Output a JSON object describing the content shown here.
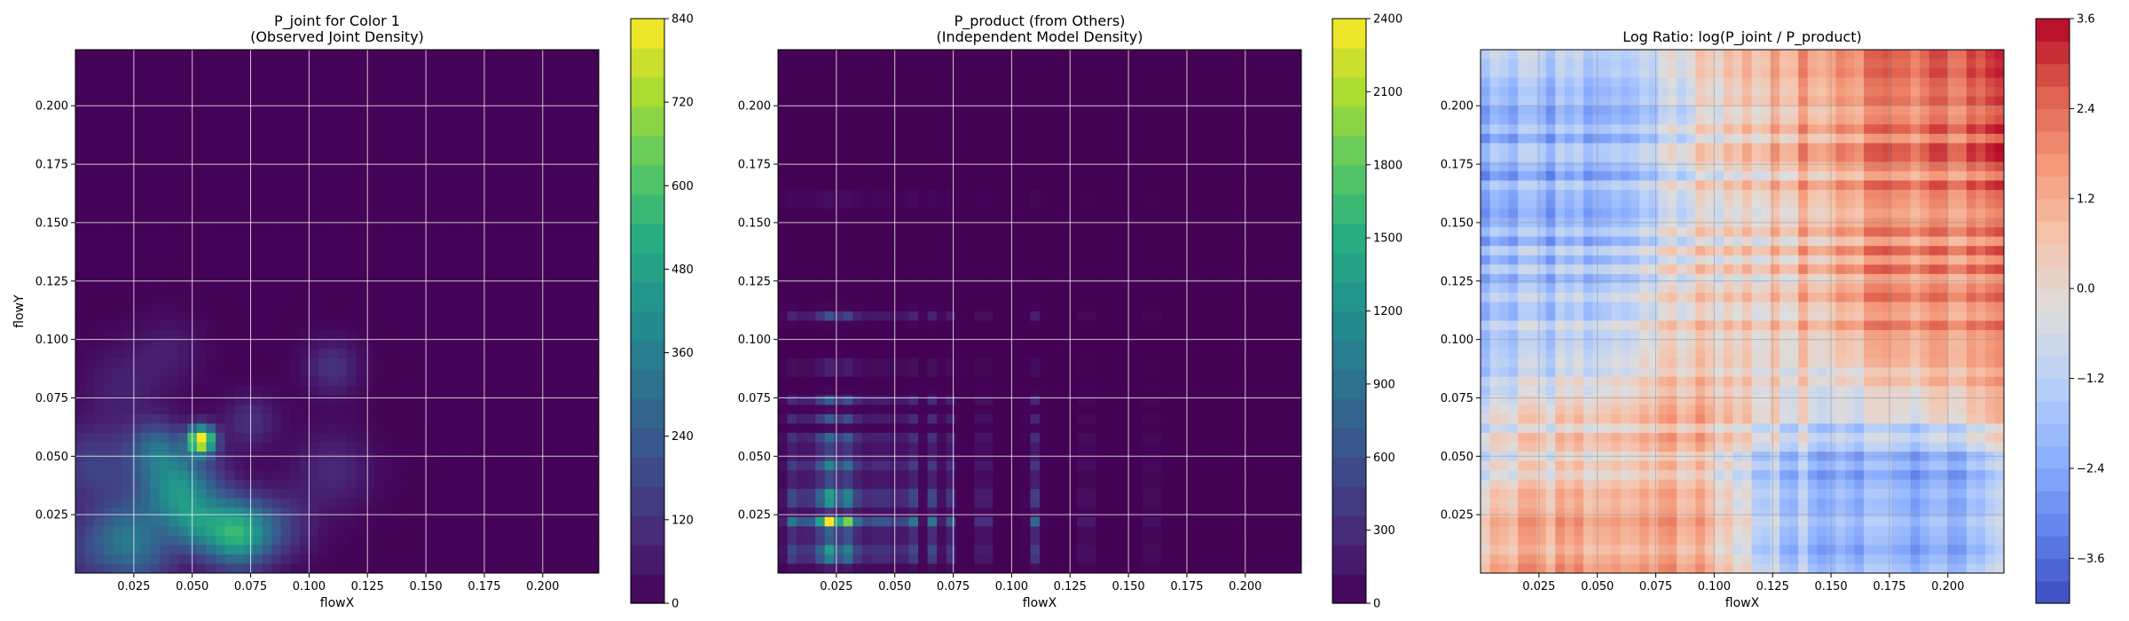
{
  "chart_data": [
    {
      "type": "heatmap",
      "title": "P_joint for Color 1\n(Observed Joint Density)",
      "xlabel": "flowX",
      "ylabel": "flowY",
      "xlim": [
        0.0,
        0.224
      ],
      "ylim": [
        0.0,
        0.224
      ],
      "xticks": [
        "0.025",
        "0.050",
        "0.075",
        "0.100",
        "0.125",
        "0.150",
        "0.175",
        "0.200"
      ],
      "yticks": [
        "0.025",
        "0.050",
        "0.075",
        "0.100",
        "0.125",
        "0.150",
        "0.175",
        "0.200"
      ],
      "grid": true,
      "colormap": "viridis",
      "colorbar": {
        "min": 0,
        "max": 840,
        "ticks": [
          "0",
          "120",
          "240",
          "360",
          "480",
          "600",
          "720",
          "840"
        ]
      },
      "hotspots": [
        {
          "x": 0.054,
          "y": 0.057,
          "value": 820
        },
        {
          "x": 0.069,
          "y": 0.017,
          "value": 520
        },
        {
          "x": 0.044,
          "y": 0.036,
          "value": 420
        },
        {
          "x": 0.034,
          "y": 0.054,
          "value": 220
        },
        {
          "x": 0.022,
          "y": 0.017,
          "value": 200
        },
        {
          "x": 0.008,
          "y": 0.046,
          "value": 160
        },
        {
          "x": 0.051,
          "y": 0.02,
          "value": 200
        },
        {
          "x": 0.088,
          "y": 0.02,
          "value": 130
        },
        {
          "x": 0.11,
          "y": 0.044,
          "value": 90
        },
        {
          "x": 0.11,
          "y": 0.088,
          "value": 120
        },
        {
          "x": 0.04,
          "y": 0.095,
          "value": 60
        },
        {
          "x": 0.02,
          "y": 0.08,
          "value": 70
        },
        {
          "x": 0.075,
          "y": 0.065,
          "value": 110
        },
        {
          "x": 0.03,
          "y": 0.005,
          "value": 150
        },
        {
          "x": 0.007,
          "y": 0.01,
          "value": 140
        }
      ]
    },
    {
      "type": "heatmap",
      "title": "P_product (from Others)\n(Independent Model Density)",
      "xlabel": "flowX",
      "ylabel": "",
      "xlim": [
        0.0,
        0.224
      ],
      "ylim": [
        0.0,
        0.224
      ],
      "xticks": [
        "0.025",
        "0.050",
        "0.075",
        "0.100",
        "0.125",
        "0.150",
        "0.175",
        "0.200"
      ],
      "yticks": [
        "0.025",
        "0.050",
        "0.075",
        "0.100",
        "0.125",
        "0.150",
        "0.175",
        "0.200"
      ],
      "grid": true,
      "colormap": "viridis",
      "colorbar": {
        "min": 0,
        "max": 2400,
        "ticks": [
          "0",
          "300",
          "600",
          "900",
          "1200",
          "1500",
          "1800",
          "2100",
          "2400"
        ]
      },
      "x_marginal_peaks": [
        {
          "x": 0.005,
          "w": 0.5
        },
        {
          "x": 0.012,
          "w": 0.6
        },
        {
          "x": 0.018,
          "w": 0.55
        },
        {
          "x": 0.022,
          "w": 1.0
        },
        {
          "x": 0.027,
          "w": 0.65
        },
        {
          "x": 0.031,
          "w": 0.85
        },
        {
          "x": 0.036,
          "w": 0.5
        },
        {
          "x": 0.044,
          "w": 0.6
        },
        {
          "x": 0.052,
          "w": 0.45
        },
        {
          "x": 0.058,
          "w": 0.4
        },
        {
          "x": 0.066,
          "w": 0.4
        },
        {
          "x": 0.073,
          "w": 0.35
        },
        {
          "x": 0.088,
          "w": 0.3
        },
        {
          "x": 0.11,
          "w": 0.35
        },
        {
          "x": 0.132,
          "w": 0.15
        },
        {
          "x": 0.16,
          "w": 0.1
        }
      ],
      "y_marginal_peaks": [
        {
          "y": 0.005,
          "w": 0.5
        },
        {
          "y": 0.01,
          "w": 0.55
        },
        {
          "y": 0.016,
          "w": 0.6
        },
        {
          "y": 0.022,
          "w": 1.0
        },
        {
          "y": 0.029,
          "w": 0.6
        },
        {
          "y": 0.034,
          "w": 0.55
        },
        {
          "y": 0.04,
          "w": 0.45
        },
        {
          "y": 0.046,
          "w": 0.45
        },
        {
          "y": 0.052,
          "w": 0.4
        },
        {
          "y": 0.058,
          "w": 0.35
        },
        {
          "y": 0.066,
          "w": 0.3
        },
        {
          "y": 0.074,
          "w": 0.3
        },
        {
          "y": 0.088,
          "w": 0.2
        },
        {
          "y": 0.11,
          "w": 0.25
        },
        {
          "y": 0.16,
          "w": 0.08
        }
      ]
    },
    {
      "type": "heatmap",
      "title": "Log Ratio: log(P_joint / P_product)",
      "xlabel": "flowX",
      "ylabel": "",
      "xlim": [
        0.0,
        0.224
      ],
      "ylim": [
        0.0,
        0.224
      ],
      "xticks": [
        "0.025",
        "0.050",
        "0.075",
        "0.100",
        "0.125",
        "0.150",
        "0.175",
        "0.200"
      ],
      "yticks": [
        "0.025",
        "0.050",
        "0.075",
        "0.100",
        "0.125",
        "0.150",
        "0.175",
        "0.200"
      ],
      "grid": true,
      "colormap": "coolwarm",
      "colorbar": {
        "min": -4.2,
        "max": 3.6,
        "ticks": [
          "−3.6",
          "−2.4",
          "−1.2",
          "0.0",
          "1.2",
          "2.4",
          "3.6"
        ]
      },
      "regions": [
        {
          "x": 0.205,
          "y": 0.205,
          "value": 3.0
        },
        {
          "x": 0.19,
          "y": 0.12,
          "value": 2.2
        },
        {
          "x": 0.15,
          "y": 0.19,
          "value": 1.4
        },
        {
          "x": 0.12,
          "y": 0.15,
          "value": 1.0
        },
        {
          "x": 0.11,
          "y": 0.09,
          "value": 1.3
        },
        {
          "x": 0.055,
          "y": 0.055,
          "value": 1.6
        },
        {
          "x": 0.07,
          "y": 0.018,
          "value": 1.5
        },
        {
          "x": 0.045,
          "y": 0.035,
          "value": 1.2
        },
        {
          "x": 0.025,
          "y": 0.16,
          "value": -3.2
        },
        {
          "x": 0.06,
          "y": 0.17,
          "value": -1.8
        },
        {
          "x": 0.03,
          "y": 0.07,
          "value": -2.4
        },
        {
          "x": 0.17,
          "y": 0.02,
          "value": -3.0
        },
        {
          "x": 0.14,
          "y": 0.04,
          "value": -2.2
        },
        {
          "x": 0.01,
          "y": 0.12,
          "value": -1.6
        },
        {
          "x": 0.09,
          "y": 0.13,
          "value": -0.6
        }
      ]
    }
  ]
}
